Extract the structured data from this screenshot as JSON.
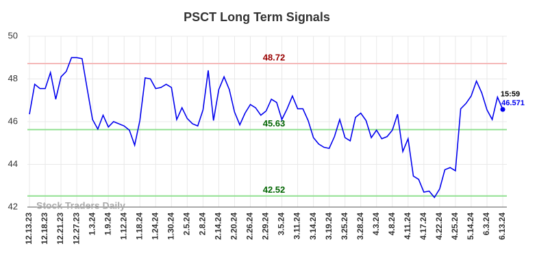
{
  "chart_data": {
    "type": "line",
    "title": "PSCT Long Term Signals",
    "categories": [
      "12.13.23",
      null,
      null,
      "12.18.23",
      null,
      null,
      "12.21.23",
      null,
      null,
      "12.27.23",
      null,
      null,
      "1.3.24",
      null,
      null,
      "1.9.24",
      null,
      null,
      "1.12.24",
      null,
      null,
      "1.18.24",
      null,
      null,
      "1.24.24",
      null,
      null,
      "1.30.24",
      null,
      null,
      "2.5.24",
      null,
      null,
      "2.8.24",
      null,
      null,
      "2.14.24",
      null,
      null,
      "2.20.24",
      null,
      null,
      "2.26.24",
      null,
      null,
      "2.29.24",
      null,
      null,
      "3.5.24",
      null,
      null,
      "3.11.24",
      null,
      null,
      "3.14.24",
      null,
      null,
      "3.19.24",
      null,
      null,
      "3.25.24",
      null,
      null,
      "3.28.24",
      null,
      null,
      "4.3.24",
      null,
      null,
      "4.8.24",
      null,
      null,
      "4.11.24",
      null,
      null,
      "4.17.24",
      null,
      null,
      "4.22.24",
      null,
      null,
      "4.25.24",
      null,
      null,
      "5.14.24",
      null,
      null,
      "6.3.24",
      null,
      null,
      "6.13.24"
    ],
    "values": [
      46.35,
      47.75,
      47.55,
      47.55,
      48.3,
      47.05,
      48.1,
      48.35,
      49.0,
      49.0,
      48.95,
      47.5,
      46.1,
      45.65,
      46.3,
      45.75,
      46.0,
      45.9,
      45.8,
      45.6,
      44.9,
      46.05,
      48.05,
      48.0,
      47.55,
      47.6,
      47.75,
      47.6,
      46.1,
      46.65,
      46.15,
      45.9,
      45.8,
      46.55,
      48.4,
      46.05,
      47.5,
      48.1,
      47.5,
      46.45,
      45.85,
      46.4,
      46.8,
      46.65,
      46.3,
      46.5,
      47.05,
      46.9,
      46.1,
      46.6,
      47.2,
      46.6,
      46.6,
      46.05,
      45.25,
      44.95,
      44.8,
      44.75,
      45.3,
      46.1,
      45.25,
      45.1,
      46.2,
      46.4,
      46.05,
      45.25,
      45.6,
      45.2,
      45.3,
      45.6,
      46.35,
      44.6,
      45.2,
      43.45,
      43.3,
      42.7,
      42.75,
      42.45,
      42.85,
      43.75,
      43.85,
      43.7,
      46.6,
      46.85,
      47.2,
      47.9,
      47.35,
      46.55,
      46.1,
      47.15,
      46.571
    ],
    "color": "#0000ee",
    "ylim": [
      42,
      50
    ],
    "yticks": [
      42,
      44,
      46,
      48,
      50
    ],
    "grid": true,
    "hlines": [
      {
        "value": 48.72,
        "color": "#f5b8b8",
        "label_color": "#990000"
      },
      {
        "value": 45.63,
        "color": "#90e090",
        "label_color": "#006400"
      },
      {
        "value": 42.52,
        "color": "#90e090",
        "label_color": "#006400"
      }
    ],
    "last_time": "15:59",
    "watermark": "Stock Traders Daily"
  }
}
